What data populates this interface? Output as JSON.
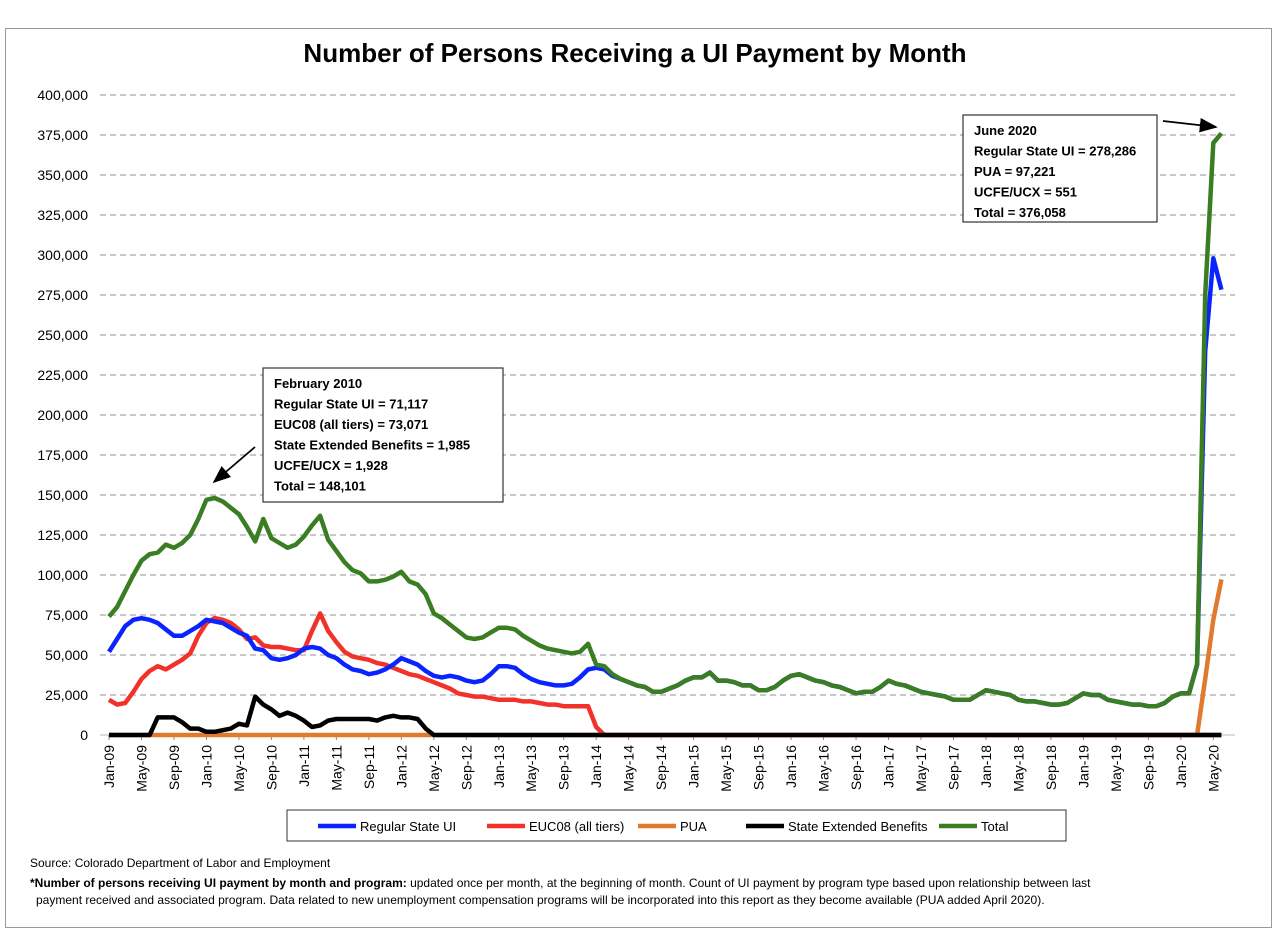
{
  "chart_data": {
    "type": "line",
    "title": "Number of Persons Receiving a UI Payment by Month",
    "xlabel": "",
    "ylabel": "",
    "ylim": [
      0,
      400000
    ],
    "ytick_step": 25000,
    "grid": "horizontal dashed",
    "legend_placement": "bottom",
    "x_start": "Jan-09",
    "x_end": "Jun-20",
    "x_tick_labels": [
      "Jan-09",
      "May-09",
      "Sep-09",
      "Jan-10",
      "May-10",
      "Sep-10",
      "Jan-11",
      "May-11",
      "Sep-11",
      "Jan-12",
      "May-12",
      "Sep-12",
      "Jan-13",
      "May-13",
      "Sep-13",
      "Jan-14",
      "May-14",
      "Sep-14",
      "Jan-15",
      "May-15",
      "Sep-15",
      "Jan-16",
      "May-16",
      "Sep-16",
      "Jan-17",
      "May-17",
      "Sep-17",
      "Jan-18",
      "May-18",
      "Sep-18",
      "Jan-19",
      "May-19",
      "Sep-19",
      "Jan-20",
      "May-20"
    ],
    "series": [
      {
        "name": "Regular State UI",
        "color": "#0a24ff",
        "values": [
          52000,
          60000,
          68000,
          72000,
          73000,
          72000,
          70000,
          66000,
          62000,
          62000,
          65000,
          68000,
          72000,
          71000,
          70000,
          67000,
          64000,
          62000,
          54000,
          53000,
          48000,
          47000,
          48000,
          50000,
          54000,
          55000,
          54000,
          50000,
          48000,
          44000,
          41000,
          40000,
          38000,
          39000,
          41000,
          44000,
          48000,
          46000,
          44000,
          40000,
          37000,
          36000,
          37000,
          36000,
          34000,
          33000,
          34000,
          38000,
          43000,
          43000,
          42000,
          38000,
          35000,
          33000,
          32000,
          31000,
          31000,
          32000,
          36000,
          41000,
          42000,
          41000,
          37000,
          35000,
          33000,
          31000,
          30000,
          27000,
          27000,
          29000,
          31000,
          34000,
          36000,
          36000,
          39000,
          34000,
          34000,
          33000,
          31000,
          31000,
          28000,
          28000,
          30000,
          34000,
          37000,
          38000,
          36000,
          34000,
          33000,
          31000,
          30000,
          28000,
          26000,
          27000,
          27000,
          30000,
          34000,
          32000,
          31000,
          29000,
          27000,
          26000,
          25000,
          24000,
          22000,
          22000,
          22000,
          25000,
          28000,
          27000,
          26000,
          25000,
          22000,
          21000,
          21000,
          20000,
          19000,
          19000,
          20000,
          23000,
          26000,
          25000,
          25000,
          22000,
          21000,
          20000,
          19000,
          19000,
          18000,
          18000,
          20000,
          24000,
          26000,
          26000,
          44000,
          240000,
          298000,
          278286
        ]
      },
      {
        "name": "EUC08 (all tiers)",
        "color": "#f2322a",
        "values": [
          22000,
          19000,
          20000,
          27000,
          35000,
          40000,
          43000,
          41000,
          44000,
          47000,
          51000,
          62000,
          70000,
          73071,
          72000,
          70000,
          66000,
          60000,
          61000,
          56000,
          55000,
          55000,
          54000,
          53000,
          53000,
          65000,
          76000,
          65000,
          58000,
          52000,
          49000,
          48000,
          47000,
          45000,
          44000,
          42000,
          40000,
          38000,
          37000,
          35000,
          33000,
          31000,
          29000,
          26000,
          25000,
          24000,
          24000,
          23000,
          22000,
          22000,
          22000,
          21000,
          21000,
          20000,
          19000,
          19000,
          18000,
          18000,
          18000,
          18000,
          5000,
          0,
          0,
          0,
          0,
          0,
          0,
          0,
          0,
          0,
          0,
          0,
          0,
          0,
          0,
          0,
          0,
          0,
          0,
          0,
          0,
          0,
          0,
          0,
          0,
          0,
          0,
          0,
          0,
          0,
          0,
          0,
          0,
          0,
          0,
          0,
          0,
          0,
          0,
          0,
          0,
          0,
          0,
          0,
          0,
          0,
          0,
          0,
          0,
          0,
          0,
          0,
          0,
          0,
          0,
          0,
          0,
          0,
          0,
          0,
          0,
          0,
          0,
          0,
          0,
          0,
          0,
          0,
          0,
          0,
          0,
          0,
          0,
          0,
          0,
          0,
          0,
          0
        ]
      },
      {
        "name": "PUA",
        "color": "#e07a2e",
        "values": [
          0,
          0,
          0,
          0,
          0,
          0,
          0,
          0,
          0,
          0,
          0,
          0,
          0,
          0,
          0,
          0,
          0,
          0,
          0,
          0,
          0,
          0,
          0,
          0,
          0,
          0,
          0,
          0,
          0,
          0,
          0,
          0,
          0,
          0,
          0,
          0,
          0,
          0,
          0,
          0,
          0,
          0,
          0,
          0,
          0,
          0,
          0,
          0,
          0,
          0,
          0,
          0,
          0,
          0,
          0,
          0,
          0,
          0,
          0,
          0,
          0,
          0,
          0,
          0,
          0,
          0,
          0,
          0,
          0,
          0,
          0,
          0,
          0,
          0,
          0,
          0,
          0,
          0,
          0,
          0,
          0,
          0,
          0,
          0,
          0,
          0,
          0,
          0,
          0,
          0,
          0,
          0,
          0,
          0,
          0,
          0,
          0,
          0,
          0,
          0,
          0,
          0,
          0,
          0,
          0,
          0,
          0,
          0,
          0,
          0,
          0,
          0,
          0,
          0,
          0,
          0,
          0,
          0,
          0,
          0,
          0,
          0,
          0,
          0,
          0,
          0,
          0,
          0,
          0,
          0,
          0,
          0,
          0,
          0,
          0,
          35000,
          72000,
          97221
        ]
      },
      {
        "name": "State Extended Benefits",
        "color": "#000000",
        "values": [
          0,
          0,
          0,
          0,
          0,
          0,
          11000,
          11000,
          11000,
          8000,
          4000,
          4000,
          2000,
          1985,
          3000,
          4000,
          7000,
          6000,
          24000,
          19000,
          16000,
          12000,
          14000,
          12000,
          9000,
          5000,
          6000,
          9000,
          10000,
          10000,
          10000,
          10000,
          10000,
          9000,
          11000,
          12000,
          11000,
          11000,
          10000,
          4000,
          0,
          0,
          0,
          0,
          0,
          0,
          0,
          0,
          0,
          0,
          0,
          0,
          0,
          0,
          0,
          0,
          0,
          0,
          0,
          0,
          0,
          0,
          0,
          0,
          0,
          0,
          0,
          0,
          0,
          0,
          0,
          0,
          0,
          0,
          0,
          0,
          0,
          0,
          0,
          0,
          0,
          0,
          0,
          0,
          0,
          0,
          0,
          0,
          0,
          0,
          0,
          0,
          0,
          0,
          0,
          0,
          0,
          0,
          0,
          0,
          0,
          0,
          0,
          0,
          0,
          0,
          0,
          0,
          0,
          0,
          0,
          0,
          0,
          0,
          0,
          0,
          0,
          0,
          0,
          0,
          0,
          0,
          0,
          0,
          0,
          0,
          0,
          0,
          0,
          0,
          0,
          0,
          0,
          0,
          0,
          0,
          0,
          0
        ]
      },
      {
        "name": "Total",
        "color": "#3a7d22",
        "values": [
          74000,
          80000,
          90000,
          100000,
          109000,
          113000,
          114000,
          119000,
          117000,
          120000,
          125000,
          135000,
          147000,
          148101,
          146000,
          142000,
          138000,
          130000,
          121000,
          135000,
          123000,
          120000,
          117000,
          119000,
          124000,
          131000,
          137000,
          122000,
          115000,
          108000,
          103000,
          101000,
          96000,
          96000,
          97000,
          99000,
          102000,
          96000,
          94000,
          88000,
          76000,
          73000,
          69000,
          65000,
          61000,
          60000,
          61000,
          64000,
          67000,
          67000,
          66000,
          62000,
          59000,
          56000,
          54000,
          53000,
          52000,
          51000,
          52000,
          57000,
          44000,
          43000,
          38000,
          35000,
          33000,
          31000,
          30000,
          27000,
          27000,
          29000,
          31000,
          34000,
          36000,
          36000,
          39000,
          34000,
          34000,
          33000,
          31000,
          31000,
          28000,
          28000,
          30000,
          34000,
          37000,
          38000,
          36000,
          34000,
          33000,
          31000,
          30000,
          28000,
          26000,
          27000,
          27000,
          30000,
          34000,
          32000,
          31000,
          29000,
          27000,
          26000,
          25000,
          24000,
          22000,
          22000,
          22000,
          25000,
          28000,
          27000,
          26000,
          25000,
          22000,
          21000,
          21000,
          20000,
          19000,
          19000,
          20000,
          23000,
          26000,
          25000,
          25000,
          22000,
          21000,
          20000,
          19000,
          19000,
          18000,
          18000,
          20000,
          24000,
          26000,
          26000,
          44000,
          275000,
          370000,
          376058
        ]
      }
    ],
    "annotations": [
      {
        "lines": [
          "February 2010",
          "Regular State UI = 71,117",
          "EUC08 (all tiers) = 73,071",
          "State Extended Benefits = 1,985",
          "UCFE/UCX = 1,928",
          "Total = 148,101"
        ]
      },
      {
        "lines": [
          "June 2020",
          "Regular State UI = 278,286",
          "PUA = 97,221",
          "UCFE/UCX = 551",
          "Total = 376,058"
        ]
      }
    ]
  },
  "footer": {
    "source": "Source: Colorado Department of Labor and Employment",
    "note_bold": "*Number of persons receiving UI payment by month and program:",
    "note_line1": " updated once per month, at the beginning of month. Count of UI payment by program type based upon relationship between last",
    "note_line2": "payment received and associated program. Data related to new unemployment compensation programs will be incorporated into this report as they become available (PUA added April 2020)."
  }
}
